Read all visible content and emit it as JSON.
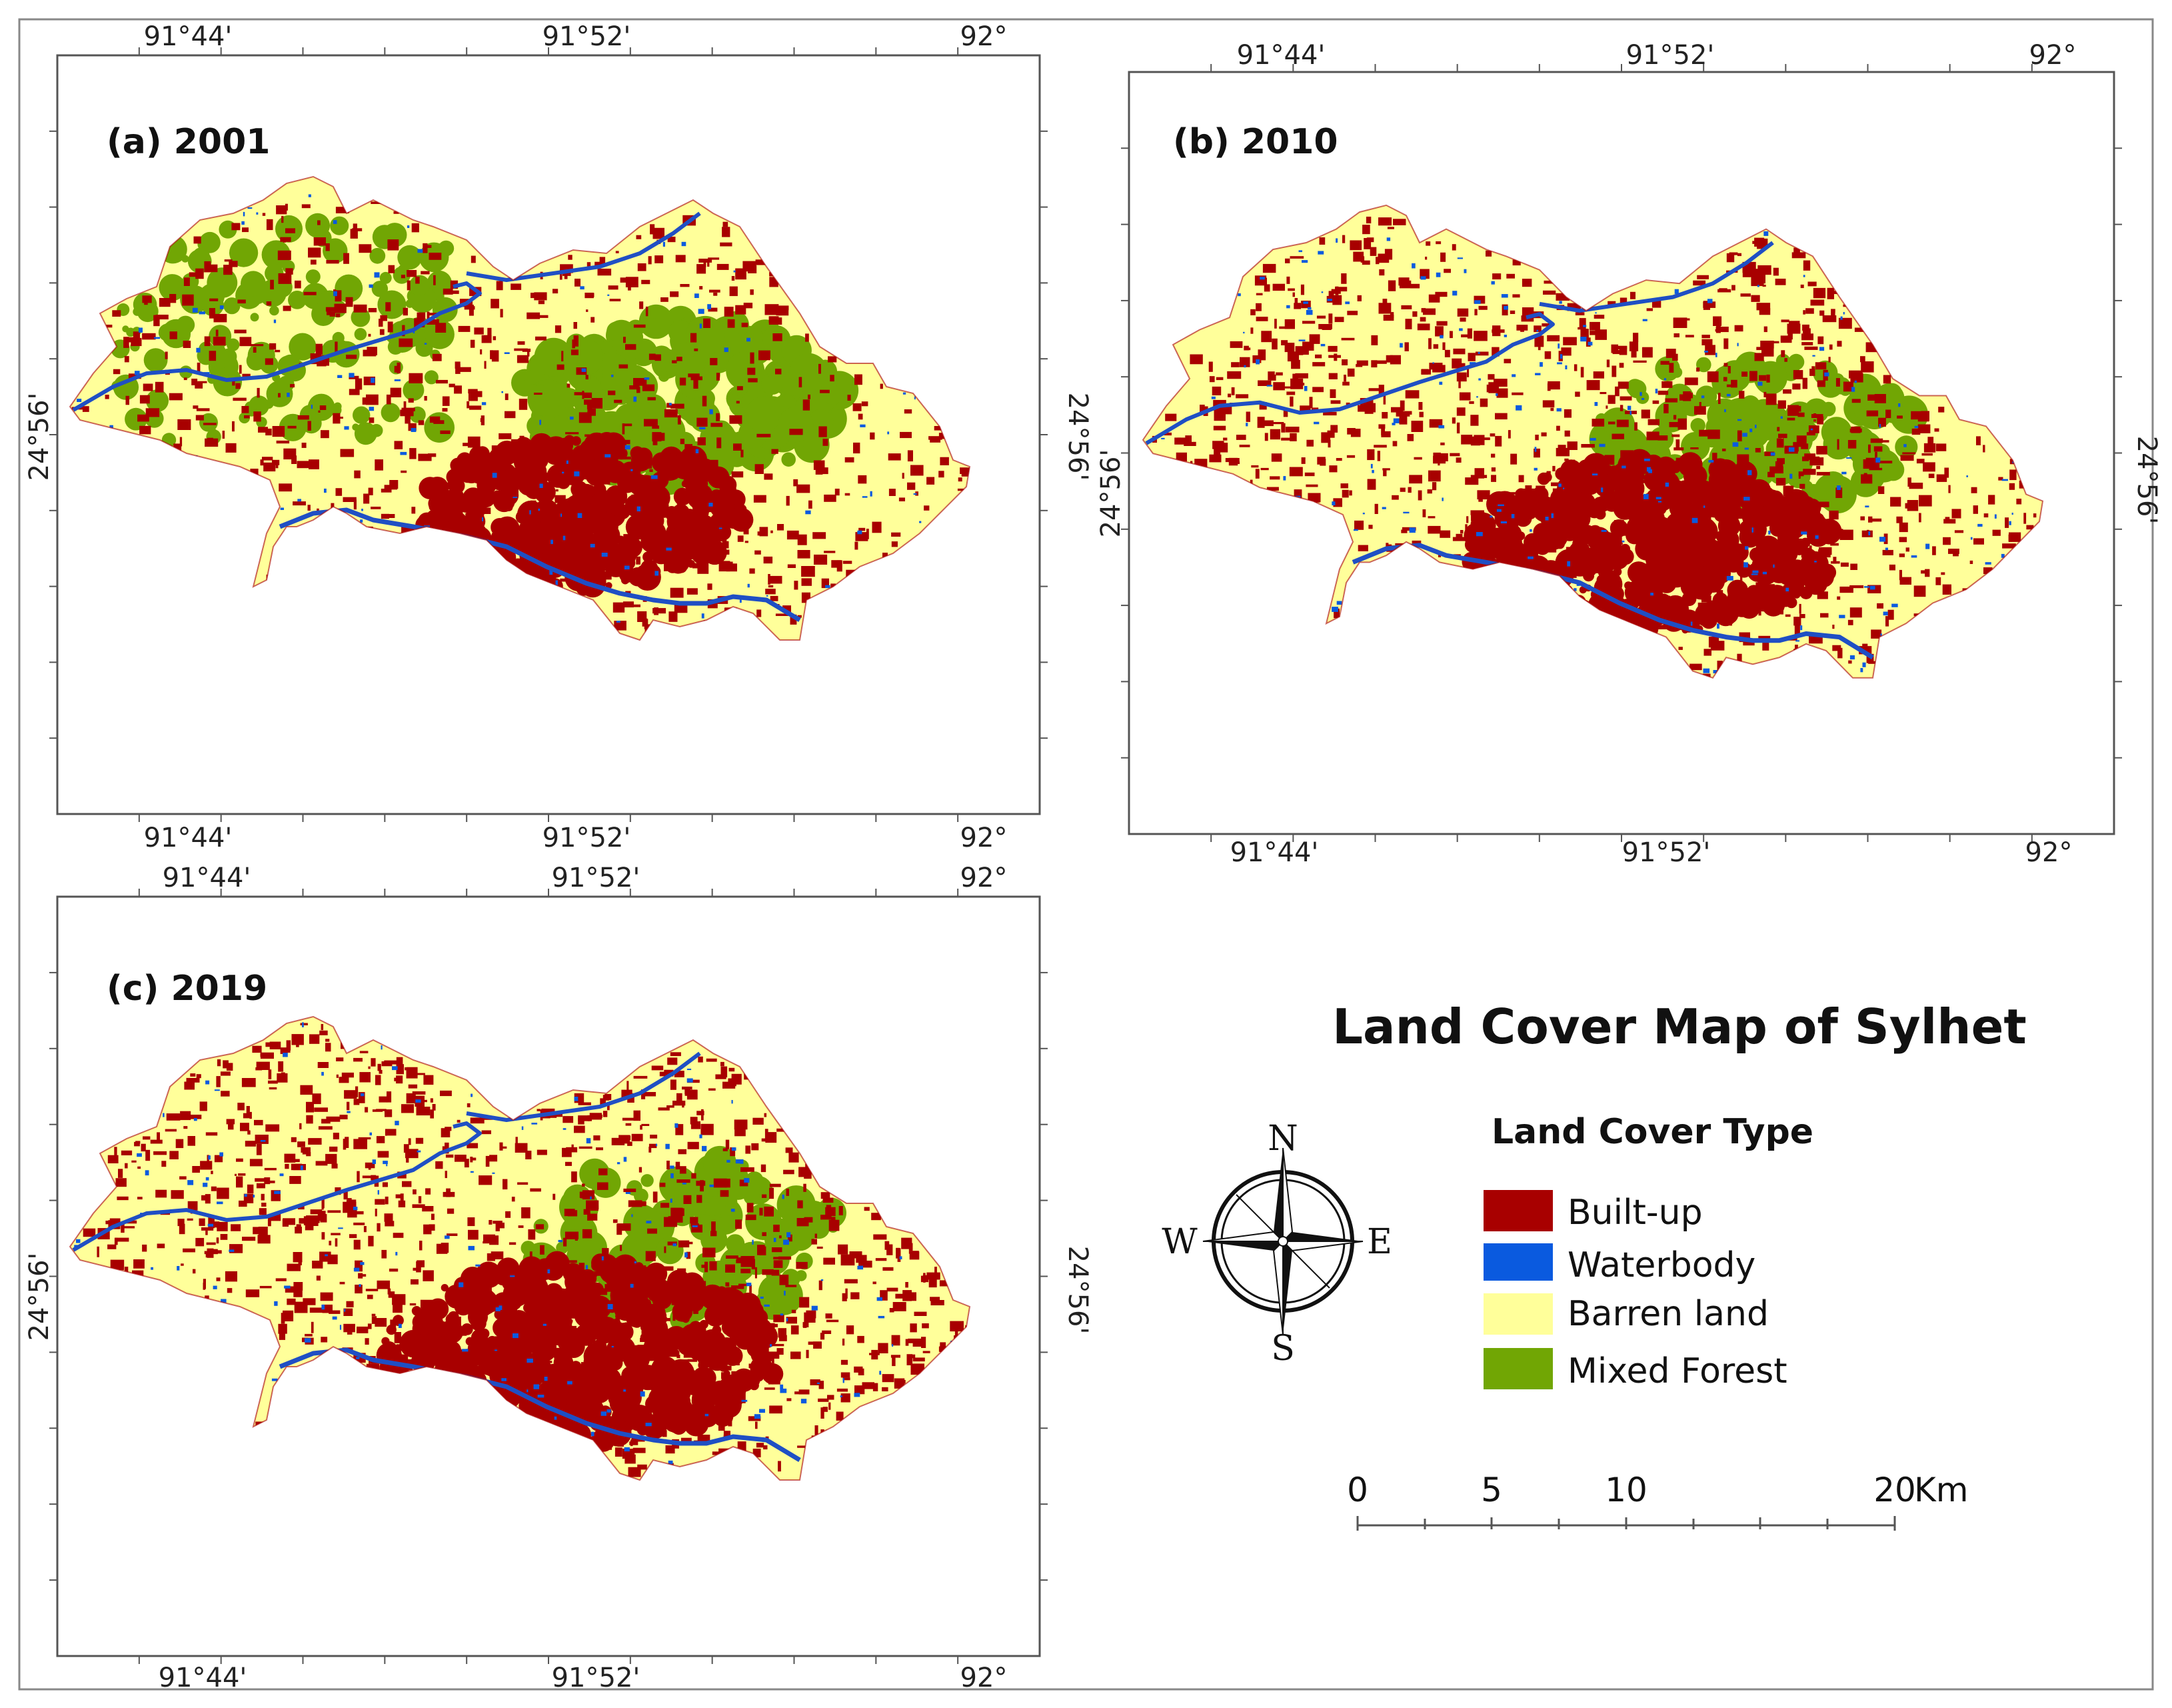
{
  "figure": {
    "title": "Land Cover Map of Sylhet",
    "colors": {
      "builtup": "#a80000",
      "water": "#0a5adf",
      "barren": "#ffff9a",
      "forest": "#71a604",
      "frame": "#555555",
      "river": "#1f4fc4"
    }
  },
  "maps": [
    {
      "id": "a",
      "title": "(a) 2001",
      "lon_labels": [
        "91°44'",
        "91°52'",
        "92°"
      ],
      "lat_labels": [
        "24°56'",
        "24°56'"
      ]
    },
    {
      "id": "b",
      "title": "(b) 2010",
      "lon_labels": [
        "91°44'",
        "91°52'",
        "92°"
      ],
      "lat_labels": [
        "24°56'",
        "24°56'"
      ]
    },
    {
      "id": "c",
      "title": "(c) 2019",
      "lon_labels": [
        "91°44'",
        "91°52'",
        "92°"
      ],
      "lat_labels": [
        "24°56'",
        "24°56'"
      ]
    }
  ],
  "legend": {
    "title": "Land Cover Type",
    "items": [
      {
        "label": "Built-up",
        "color": "#a80000"
      },
      {
        "label": "Waterbody",
        "color": "#0a5adf"
      },
      {
        "label": "Barren land",
        "color": "#ffff9a"
      },
      {
        "label": "Mixed Forest",
        "color": "#71a604"
      }
    ]
  },
  "compass": {
    "n": "N",
    "s": "S",
    "e": "E",
    "w": "W"
  },
  "scale_bar": {
    "labels": [
      "0",
      "5",
      "10",
      "20"
    ],
    "unit": "Km"
  }
}
